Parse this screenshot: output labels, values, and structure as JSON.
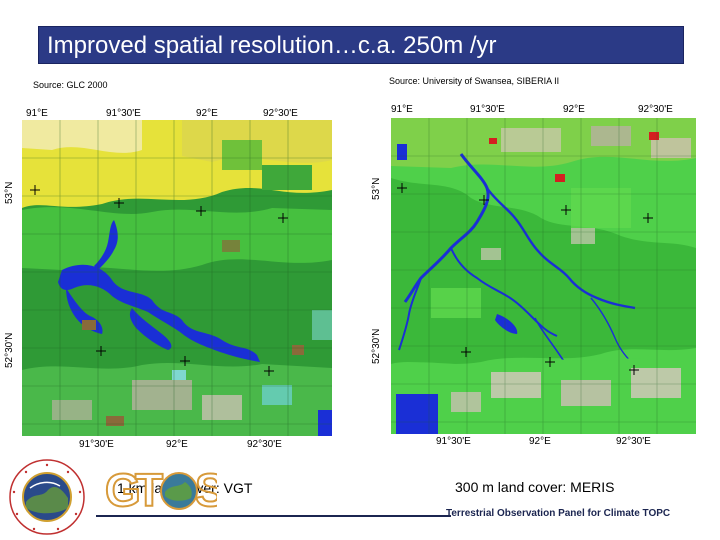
{
  "slide": {
    "title": "Improved spatial resolution…c.a. 250m /yr"
  },
  "left_panel": {
    "source": "Source: GLC 2000",
    "top_ticks": [
      "91°E",
      "91°30'E",
      "92°E",
      "92°30'E"
    ],
    "bottom_ticks": [
      "91°30'E",
      "92°E",
      "92°30'E"
    ],
    "side_ticks": [
      "53°N",
      "52°30'N"
    ],
    "caption": "1 km land cover: VGT"
  },
  "right_panel": {
    "source": "Source: University of Swansea, SIBERIA II",
    "top_ticks": [
      "91°E",
      "91°30'E",
      "92°E",
      "92°30'E"
    ],
    "bottom_ticks": [
      "91°30'E",
      "92°E",
      "92°30'E"
    ],
    "side_ticks": [
      "53°N",
      "52°30'N"
    ],
    "caption": "300 m land cover: MERIS"
  },
  "footer": {
    "text": "Terrestrial Observation Panel for Climate TOPC"
  },
  "logos": {
    "left_emblem": "gcos-emblem",
    "gtos_word": "GTOS"
  },
  "colors": {
    "title_bg": "#2b3a86",
    "forest_dark": "#2f9a36",
    "forest_light": "#4fd04a",
    "water": "#1a2fd6",
    "yellow_crop": "#e6e23a",
    "bare": "#b8b0a0"
  }
}
